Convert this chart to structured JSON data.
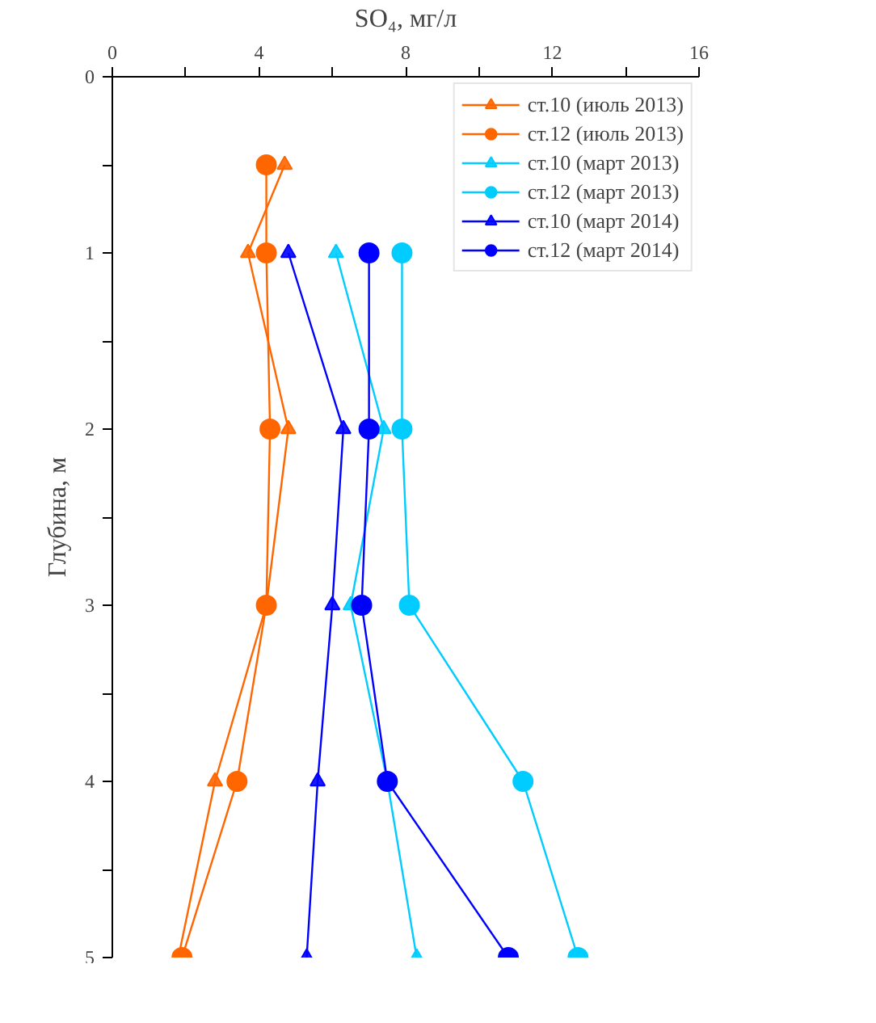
{
  "chart_data": {
    "type": "line",
    "xlabel": "SO₄, мг/л",
    "ylabel": "Глубина, м",
    "xlim": [
      0,
      16
    ],
    "xticks": [
      0,
      {
        "value": 2,
        "label": null
      },
      4,
      {
        "value": 6,
        "label": null
      },
      8,
      {
        "value": 10,
        "label": null
      },
      12,
      {
        "value": 14,
        "label": null
      },
      16
    ],
    "ylim": [
      5,
      0
    ],
    "yticks": [
      0,
      {
        "value": 0.5,
        "label": null
      },
      1,
      {
        "value": 1.5,
        "label": null
      },
      2,
      {
        "value": 2.5,
        "label": null
      },
      3,
      {
        "value": 3.5,
        "label": null
      },
      4,
      {
        "value": 4.5,
        "label": null
      },
      5
    ],
    "grid": false,
    "legend": "top right",
    "line_style": "solid",
    "series": [
      {
        "name": "ст.10 (июль 2013)",
        "color": "#ff6600",
        "marker": "triangle",
        "x": [
          4.7,
          3.7,
          4.8,
          4.2,
          2.8,
          1.8
        ],
        "values": [
          0.5,
          1,
          2,
          3,
          4,
          5
        ]
      },
      {
        "name": "ст.12 (июль 2013)",
        "color": "#ff6600",
        "marker": "circle",
        "x": [
          4.2,
          4.2,
          4.3,
          4.2,
          3.4,
          1.9
        ],
        "values": [
          0.5,
          1,
          2,
          3,
          4,
          5
        ]
      },
      {
        "name": "ст.10 (март 2013)",
        "color": "#00ccff",
        "marker": "triangle",
        "x": [
          6.1,
          7.4,
          6.5,
          7.5,
          8.3
        ],
        "values": [
          1,
          2,
          3,
          4,
          5
        ]
      },
      {
        "name": "ст.12 (март 2013)",
        "color": "#00ccff",
        "marker": "circle",
        "x": [
          7.9,
          7.9,
          8.1,
          11.2,
          12.7
        ],
        "values": [
          1,
          2,
          3,
          4,
          5
        ]
      },
      {
        "name": "ст.10 (март 2014)",
        "color": "#0000ff",
        "marker": "triangle",
        "x": [
          4.8,
          6.3,
          6.0,
          5.6,
          5.3
        ],
        "values": [
          1,
          2,
          3,
          4,
          5
        ]
      },
      {
        "name": "ст.12 (март 2014)",
        "color": "#0000ff",
        "marker": "circle",
        "x": [
          7.0,
          7.0,
          6.8,
          7.5,
          10.8
        ],
        "values": [
          1,
          2,
          3,
          4,
          5
        ]
      }
    ]
  }
}
